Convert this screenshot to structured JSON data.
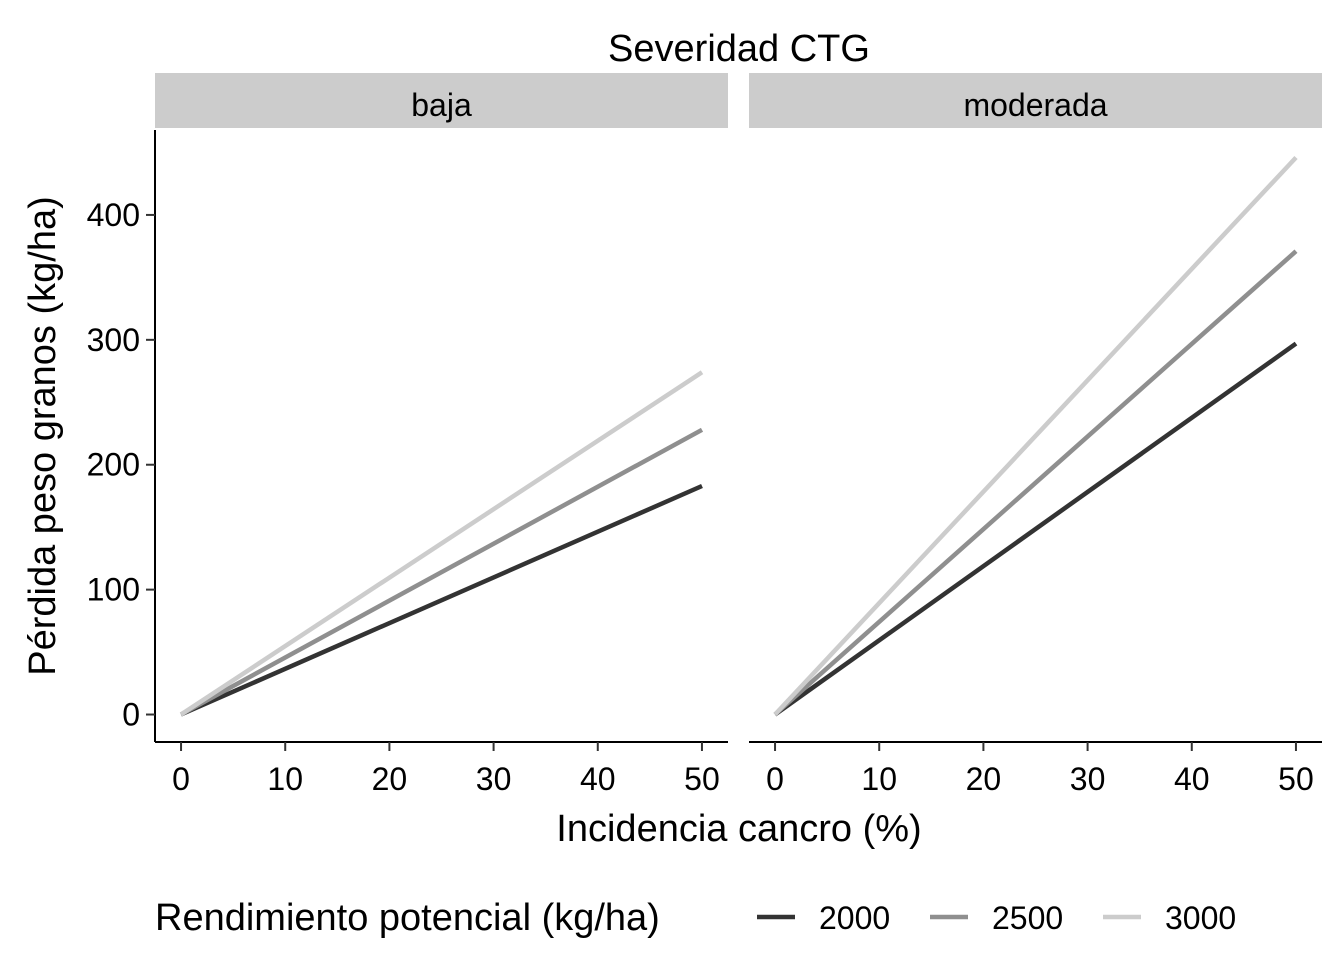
{
  "chart_data": {
    "type": "line",
    "title": "Severidad CTG",
    "xlabel": "Incidencia cancro (%)",
    "ylabel": "Pérdida peso granos (kg/ha)",
    "xlim": [
      -2.5,
      52.5
    ],
    "ylim": [
      -22,
      468
    ],
    "x_ticks": [
      0,
      10,
      20,
      30,
      40,
      50
    ],
    "y_ticks": [
      0,
      100,
      200,
      300,
      400
    ],
    "grid": false,
    "legend": {
      "title": "Rendimiento potencial (kg/ha)",
      "position": "bottom"
    },
    "panels": [
      {
        "label": "baja",
        "series": [
          {
            "name": "2000",
            "color": "#333333",
            "x": [
              0,
              50
            ],
            "y": [
              0,
              183
            ]
          },
          {
            "name": "2500",
            "color": "#8f8f8f",
            "x": [
              0,
              50
            ],
            "y": [
              0,
              228
            ]
          },
          {
            "name": "3000",
            "color": "#cccccc",
            "x": [
              0,
              50
            ],
            "y": [
              0,
              274
            ]
          }
        ]
      },
      {
        "label": "moderada",
        "series": [
          {
            "name": "2000",
            "color": "#333333",
            "x": [
              0,
              50
            ],
            "y": [
              0,
              297
            ]
          },
          {
            "name": "2500",
            "color": "#8f8f8f",
            "x": [
              0,
              50
            ],
            "y": [
              0,
              371
            ]
          },
          {
            "name": "3000",
            "color": "#cccccc",
            "x": [
              0,
              50
            ],
            "y": [
              0,
              446
            ]
          }
        ]
      }
    ]
  }
}
